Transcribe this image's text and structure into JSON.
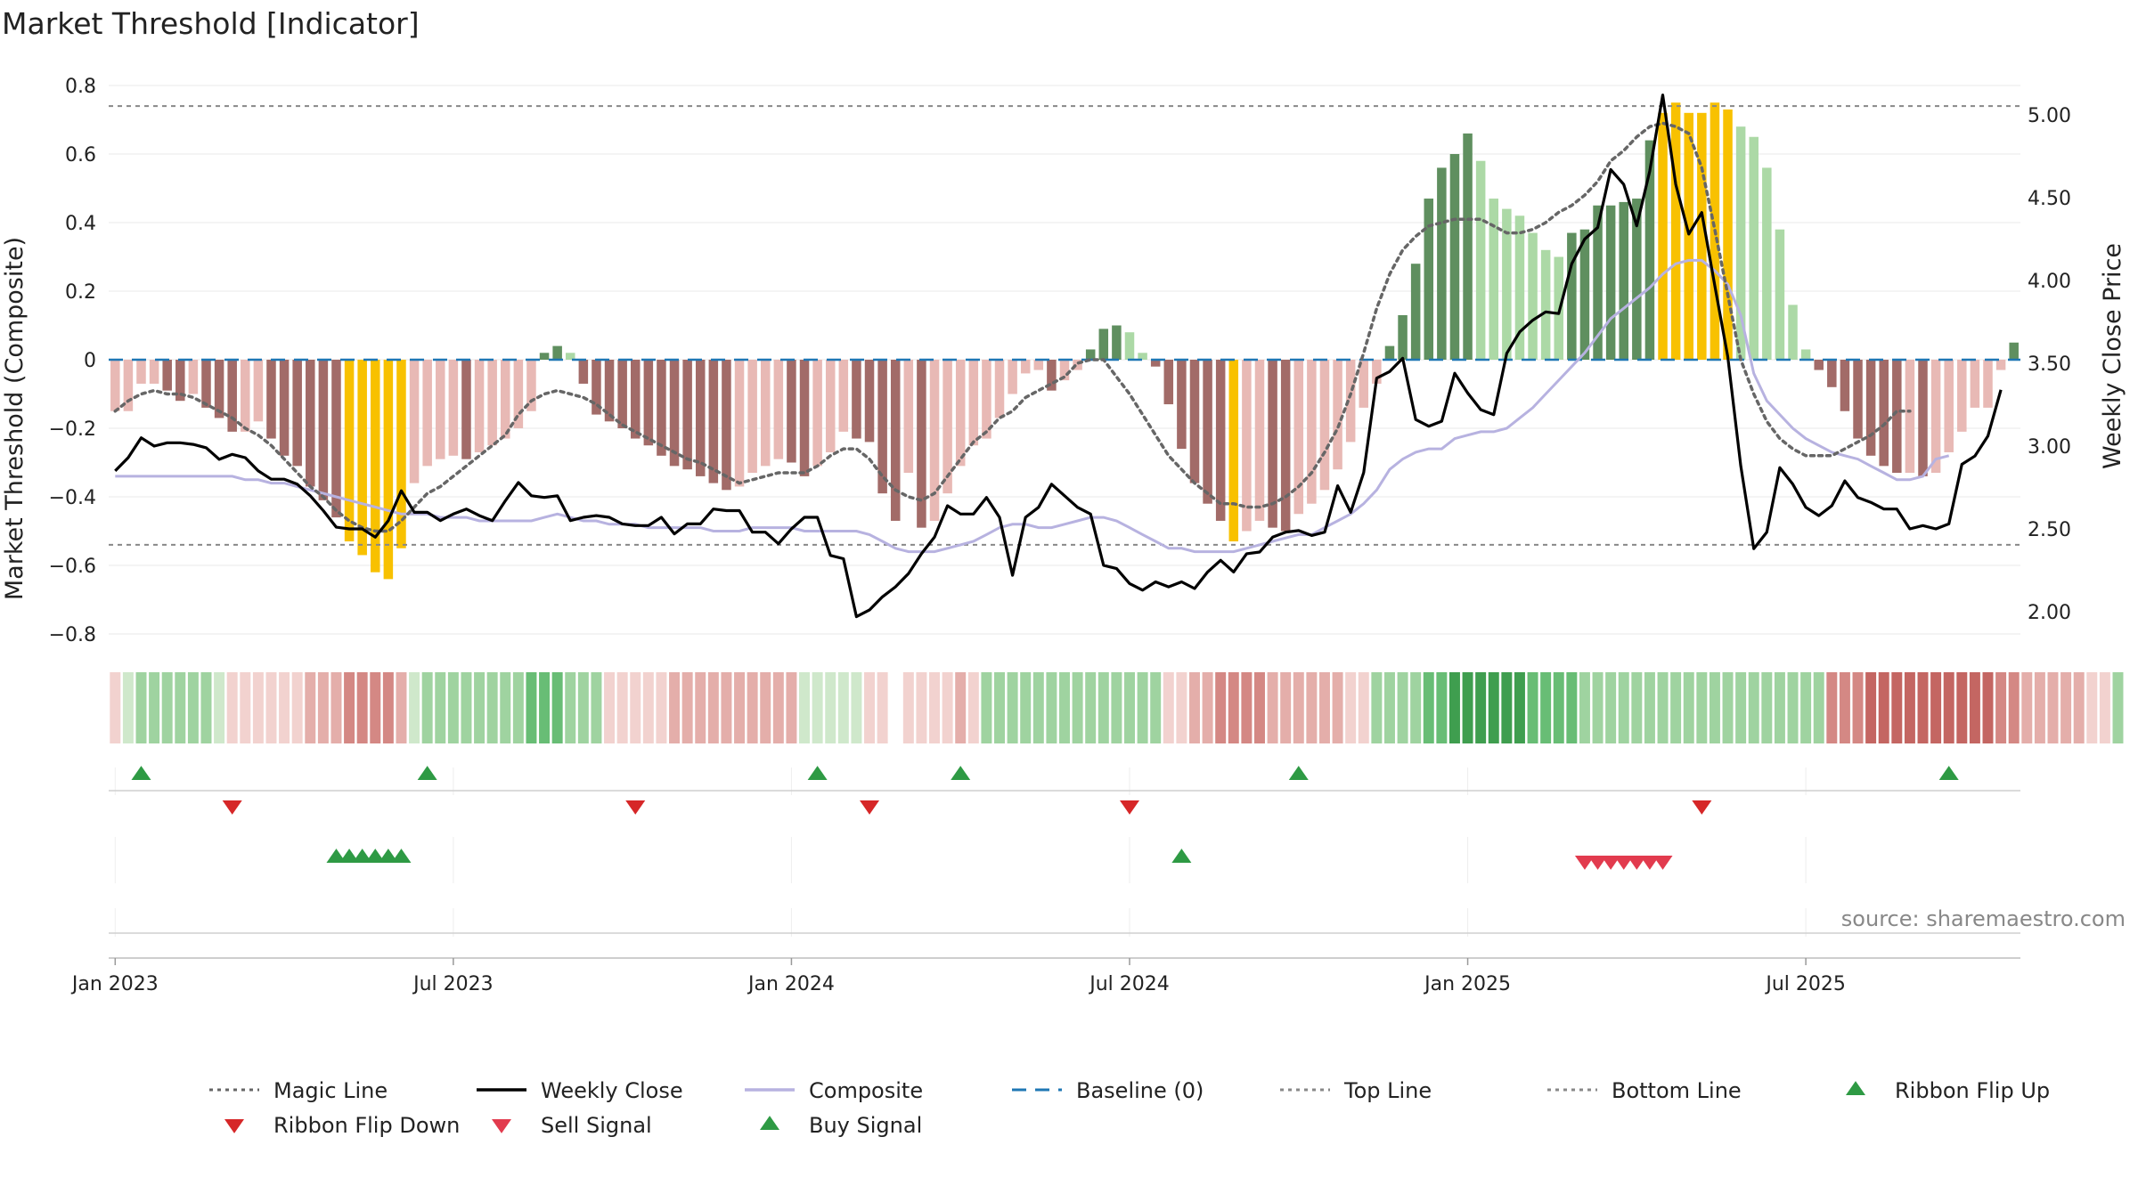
{
  "chart_data": {
    "type": "bar",
    "title": "Market Threshold [Indicator]",
    "ylabel": "Market Threshold (Composite)",
    "y2label": "Weekly Close Price",
    "source": "source: sharemaestro.com",
    "ylim": [
      -0.85,
      0.82
    ],
    "y2lim": [
      1.7,
      5.2
    ],
    "y_ticks": [
      0.8,
      0.6,
      0.4,
      0.2,
      0,
      -0.2,
      -0.4,
      -0.6,
      -0.8
    ],
    "y_tick_labels": [
      "0.8",
      "0.6",
      "0.4",
      "0.2",
      "0",
      "−0.2",
      "−0.4",
      "−0.6",
      "−0.8"
    ],
    "y2_ticks": [
      5.0,
      4.5,
      4.0,
      3.5,
      3.0,
      2.5,
      2.0
    ],
    "y2_tick_labels": [
      "5.00",
      "4.50",
      "4.00",
      "3.50",
      "3.00",
      "2.50",
      "2.00"
    ],
    "x_ticks": [
      {
        "week": 0,
        "label": "Jan 2023"
      },
      {
        "week": 26,
        "label": "Jul 2023"
      },
      {
        "week": 52,
        "label": "Jan 2024"
      },
      {
        "week": 78,
        "label": "Jul 2024"
      },
      {
        "week": 104,
        "label": "Jan 2025"
      },
      {
        "week": 130,
        "label": "Jul 2025"
      }
    ],
    "top_line": 0.74,
    "bottom_line": -0.54,
    "baseline": 0,
    "composite_bars": [
      -0.15,
      -0.15,
      -0.07,
      -0.07,
      -0.09,
      -0.12,
      -0.1,
      -0.14,
      -0.17,
      -0.21,
      -0.21,
      -0.18,
      -0.23,
      -0.28,
      -0.31,
      -0.37,
      -0.41,
      -0.46,
      -0.53,
      -0.57,
      -0.62,
      -0.64,
      -0.55,
      -0.36,
      -0.31,
      -0.29,
      -0.28,
      -0.29,
      -0.27,
      -0.25,
      -0.23,
      -0.2,
      -0.15,
      0.02,
      0.04,
      0.02,
      -0.07,
      -0.16,
      -0.18,
      -0.2,
      -0.23,
      -0.25,
      -0.28,
      -0.31,
      -0.32,
      -0.34,
      -0.36,
      -0.38,
      -0.37,
      -0.33,
      -0.31,
      -0.29,
      -0.3,
      -0.34,
      -0.31,
      -0.27,
      -0.21,
      -0.23,
      -0.24,
      -0.39,
      -0.47,
      -0.33,
      -0.49,
      -0.47,
      -0.39,
      -0.31,
      -0.25,
      -0.23,
      -0.17,
      -0.1,
      -0.04,
      -0.03,
      -0.09,
      -0.06,
      -0.03,
      0.03,
      0.09,
      0.1,
      0.08,
      0.02,
      -0.02,
      -0.13,
      -0.26,
      -0.36,
      -0.42,
      -0.47,
      -0.53,
      -0.5,
      -0.47,
      -0.49,
      -0.5,
      -0.45,
      -0.42,
      -0.38,
      -0.32,
      -0.24,
      -0.14,
      -0.07,
      0.04,
      0.13,
      0.28,
      0.47,
      0.56,
      0.6,
      0.66,
      0.58,
      0.47,
      0.44,
      0.42,
      0.37,
      0.32,
      0.3,
      0.37,
      0.38,
      0.45,
      0.45,
      0.46,
      0.47,
      0.64,
      0.72,
      0.75,
      0.72,
      0.72,
      0.75,
      0.73,
      0.68,
      0.65,
      0.56,
      0.38,
      0.16,
      0.03,
      -0.03,
      -0.08,
      -0.15,
      -0.23,
      -0.28,
      -0.31,
      -0.33,
      -0.33,
      -0.34,
      -0.33,
      -0.27,
      -0.21,
      -0.14,
      -0.14,
      -0.03,
      0.05
    ],
    "close_prices": [
      2.85,
      2.93,
      3.05,
      3.0,
      3.02,
      3.02,
      3.01,
      2.99,
      2.92,
      2.95,
      2.93,
      2.85,
      2.8,
      2.8,
      2.77,
      2.7,
      2.61,
      2.51,
      2.5,
      2.5,
      2.45,
      2.55,
      2.73,
      2.6,
      2.6,
      2.55,
      2.59,
      2.62,
      2.58,
      2.55,
      2.67,
      2.78,
      2.7,
      2.69,
      2.7,
      2.55,
      2.57,
      2.58,
      2.57,
      2.53,
      2.52,
      2.52,
      2.57,
      2.47,
      2.53,
      2.53,
      2.62,
      2.61,
      2.61,
      2.48,
      2.48,
      2.41,
      2.5,
      2.57,
      2.57,
      2.34,
      2.32,
      1.97,
      2.01,
      2.09,
      2.15,
      2.23,
      2.35,
      2.45,
      2.64,
      2.59,
      2.59,
      2.69,
      2.57,
      2.22,
      2.57,
      2.63,
      2.77,
      2.7,
      2.63,
      2.59,
      2.28,
      2.26,
      2.17,
      2.13,
      2.18,
      2.15,
      2.18,
      2.14,
      2.24,
      2.31,
      2.24,
      2.35,
      2.36,
      2.45,
      2.48,
      2.49,
      2.46,
      2.48,
      2.76,
      2.6,
      2.84,
      3.41,
      3.45,
      3.53,
      3.16,
      3.12,
      3.15,
      3.44,
      3.32,
      3.22,
      3.19,
      3.56,
      3.69,
      3.76,
      3.81,
      3.8,
      4.1,
      4.25,
      4.32,
      4.67,
      4.58,
      4.33,
      4.66,
      5.12,
      4.58,
      4.28,
      4.41,
      3.97,
      3.54,
      2.88,
      2.38,
      2.48,
      2.87,
      2.77,
      2.63,
      2.58,
      2.64,
      2.79,
      2.69,
      2.66,
      2.62,
      2.62,
      2.5,
      2.52,
      2.5,
      2.53,
      2.89,
      2.94,
      3.06,
      3.34
    ],
    "magic_line": [
      -0.15,
      -0.12,
      -0.1,
      -0.09,
      -0.1,
      -0.1,
      -0.11,
      -0.13,
      -0.15,
      -0.17,
      -0.2,
      -0.22,
      -0.25,
      -0.29,
      -0.33,
      -0.37,
      -0.4,
      -0.44,
      -0.47,
      -0.49,
      -0.5,
      -0.5,
      -0.47,
      -0.43,
      -0.39,
      -0.37,
      -0.34,
      -0.31,
      -0.28,
      -0.25,
      -0.22,
      -0.16,
      -0.12,
      -0.1,
      -0.09,
      -0.1,
      -0.11,
      -0.13,
      -0.16,
      -0.19,
      -0.21,
      -0.23,
      -0.25,
      -0.27,
      -0.29,
      -0.3,
      -0.32,
      -0.34,
      -0.36,
      -0.35,
      -0.34,
      -0.33,
      -0.33,
      -0.33,
      -0.31,
      -0.28,
      -0.26,
      -0.26,
      -0.29,
      -0.34,
      -0.38,
      -0.4,
      -0.41,
      -0.39,
      -0.34,
      -0.29,
      -0.24,
      -0.21,
      -0.17,
      -0.15,
      -0.11,
      -0.09,
      -0.07,
      -0.05,
      -0.01,
      0.0,
      0.0,
      -0.05,
      -0.1,
      -0.16,
      -0.22,
      -0.28,
      -0.32,
      -0.36,
      -0.39,
      -0.42,
      -0.42,
      -0.43,
      -0.43,
      -0.42,
      -0.4,
      -0.37,
      -0.33,
      -0.27,
      -0.2,
      -0.1,
      0.02,
      0.15,
      0.25,
      0.32,
      0.36,
      0.39,
      0.4,
      0.41,
      0.41,
      0.41,
      0.39,
      0.37,
      0.37,
      0.38,
      0.4,
      0.43,
      0.45,
      0.48,
      0.52,
      0.58,
      0.61,
      0.65,
      0.68,
      0.69,
      0.68,
      0.66,
      0.56,
      0.38,
      0.19,
      0.0,
      -0.1,
      -0.18,
      -0.23,
      -0.26,
      -0.28,
      -0.28,
      -0.28,
      -0.26,
      -0.24,
      -0.22,
      -0.19,
      -0.15,
      -0.15
    ],
    "composite_line": [
      -0.34,
      -0.34,
      -0.34,
      -0.34,
      -0.34,
      -0.34,
      -0.34,
      -0.34,
      -0.34,
      -0.34,
      -0.35,
      -0.35,
      -0.36,
      -0.36,
      -0.37,
      -0.38,
      -0.39,
      -0.4,
      -0.41,
      -0.42,
      -0.43,
      -0.44,
      -0.45,
      -0.45,
      -0.45,
      -0.46,
      -0.46,
      -0.46,
      -0.47,
      -0.47,
      -0.47,
      -0.47,
      -0.47,
      -0.46,
      -0.45,
      -0.46,
      -0.47,
      -0.47,
      -0.48,
      -0.48,
      -0.48,
      -0.49,
      -0.49,
      -0.49,
      -0.49,
      -0.49,
      -0.5,
      -0.5,
      -0.5,
      -0.49,
      -0.49,
      -0.49,
      -0.49,
      -0.5,
      -0.5,
      -0.5,
      -0.5,
      -0.5,
      -0.51,
      -0.53,
      -0.55,
      -0.56,
      -0.56,
      -0.56,
      -0.55,
      -0.54,
      -0.53,
      -0.51,
      -0.49,
      -0.48,
      -0.48,
      -0.49,
      -0.49,
      -0.48,
      -0.47,
      -0.46,
      -0.46,
      -0.47,
      -0.49,
      -0.51,
      -0.53,
      -0.55,
      -0.55,
      -0.56,
      -0.56,
      -0.56,
      -0.56,
      -0.55,
      -0.54,
      -0.53,
      -0.52,
      -0.51,
      -0.51,
      -0.49,
      -0.47,
      -0.45,
      -0.42,
      -0.38,
      -0.32,
      -0.29,
      -0.27,
      -0.26,
      -0.26,
      -0.23,
      -0.22,
      -0.21,
      -0.21,
      -0.2,
      -0.17,
      -0.14,
      -0.1,
      -0.06,
      -0.02,
      0.02,
      0.07,
      0.12,
      0.15,
      0.18,
      0.21,
      0.25,
      0.28,
      0.29,
      0.29,
      0.26,
      0.22,
      0.13,
      -0.04,
      -0.12,
      -0.16,
      -0.2,
      -0.23,
      -0.25,
      -0.27,
      -0.28,
      -0.29,
      -0.31,
      -0.33,
      -0.35,
      -0.35,
      -0.34,
      -0.29,
      -0.28
    ],
    "ribbon": [
      -1,
      1,
      2,
      2,
      2,
      2,
      2,
      2,
      1,
      -1,
      -1,
      -1,
      -1,
      -1,
      -1,
      -2,
      -2,
      -2,
      -3,
      -3,
      -3,
      -3,
      -2,
      1,
      2,
      2,
      2,
      2,
      2,
      2,
      2,
      2,
      3,
      3,
      3,
      2,
      2,
      2,
      -1,
      -1,
      -1,
      -1,
      -1,
      -2,
      -2,
      -2,
      -2,
      -2,
      -2,
      -2,
      -2,
      -2,
      -2,
      1,
      1,
      1,
      1,
      1,
      -1,
      -1,
      0,
      -1,
      -1,
      -1,
      -1,
      -2,
      -1,
      2,
      2,
      2,
      2,
      2,
      2,
      2,
      2,
      2,
      2,
      2,
      2,
      2,
      2,
      -1,
      -1,
      -2,
      -2,
      -3,
      -3,
      -3,
      -3,
      -2,
      -2,
      -2,
      -2,
      -2,
      -2,
      -1,
      -1,
      2,
      2,
      2,
      2,
      3,
      3,
      4,
      4,
      4,
      4,
      4,
      4,
      3,
      3,
      3,
      3,
      2,
      2,
      2,
      2,
      2,
      2,
      2,
      2,
      2,
      2,
      2,
      2,
      2,
      2,
      2,
      2,
      2,
      2,
      2,
      -3,
      -3,
      -3,
      -4,
      -4,
      -4,
      -4,
      -4,
      -4,
      -4,
      -4,
      -4,
      -4,
      -3,
      -3,
      -2,
      -2,
      -2,
      -2,
      -2,
      -1,
      -1,
      2
    ],
    "ribbon_flip_up_weeks": [
      2,
      24,
      54,
      65,
      91,
      141
    ],
    "ribbon_flip_down_weeks": [
      9,
      40,
      58,
      78,
      122
    ],
    "buy_signal_weeks": [
      17,
      18,
      19,
      20,
      21,
      22,
      82
    ],
    "sell_signal_weeks": [
      113,
      114,
      115,
      116,
      117,
      118,
      119
    ],
    "legend": [
      {
        "label": "Magic Line",
        "kind": "line",
        "color": "#666666",
        "dash": "dotted"
      },
      {
        "label": "Weekly Close",
        "kind": "line",
        "color": "#000000",
        "dash": "solid"
      },
      {
        "label": "Composite",
        "kind": "line",
        "color": "#b7b2e0",
        "dash": "solid"
      },
      {
        "label": "Baseline (0)",
        "kind": "line",
        "color": "#1f77b4",
        "dash": "dashed"
      },
      {
        "label": "Top Line",
        "kind": "line",
        "color": "#888888",
        "dash": "dotted"
      },
      {
        "label": "Bottom Line",
        "kind": "line",
        "color": "#888888",
        "dash": "dotted"
      },
      {
        "label": "Ribbon Flip Up",
        "kind": "tri-up",
        "color": "#2e9a44"
      },
      {
        "label": "Ribbon Flip Down",
        "kind": "tri-down",
        "color": "#d62728"
      },
      {
        "label": "Sell Signal",
        "kind": "tri-down",
        "color": "#e23b4e"
      },
      {
        "label": "Buy Signal",
        "kind": "tri-up",
        "color": "#2e9a44"
      }
    ],
    "colors": {
      "bar_negative_strong": "#a26b68",
      "bar_negative_weak": "#e8b9b5",
      "bar_positive_strong": "#5f8f5f",
      "bar_positive_weak": "#acd9a6",
      "bar_extreme": "#f8c100",
      "ribbon_pos": [
        "#cfe8cb",
        "#9fd3a0",
        "#68bd75",
        "#3f9e4f"
      ],
      "ribbon_neg": [
        "#f2d2cf",
        "#e4aeaa",
        "#d48884",
        "#c46662"
      ],
      "flip_up": "#2e9a44",
      "flip_down": "#d62728",
      "sell": "#e23b4e",
      "buy": "#2e9a44"
    }
  }
}
